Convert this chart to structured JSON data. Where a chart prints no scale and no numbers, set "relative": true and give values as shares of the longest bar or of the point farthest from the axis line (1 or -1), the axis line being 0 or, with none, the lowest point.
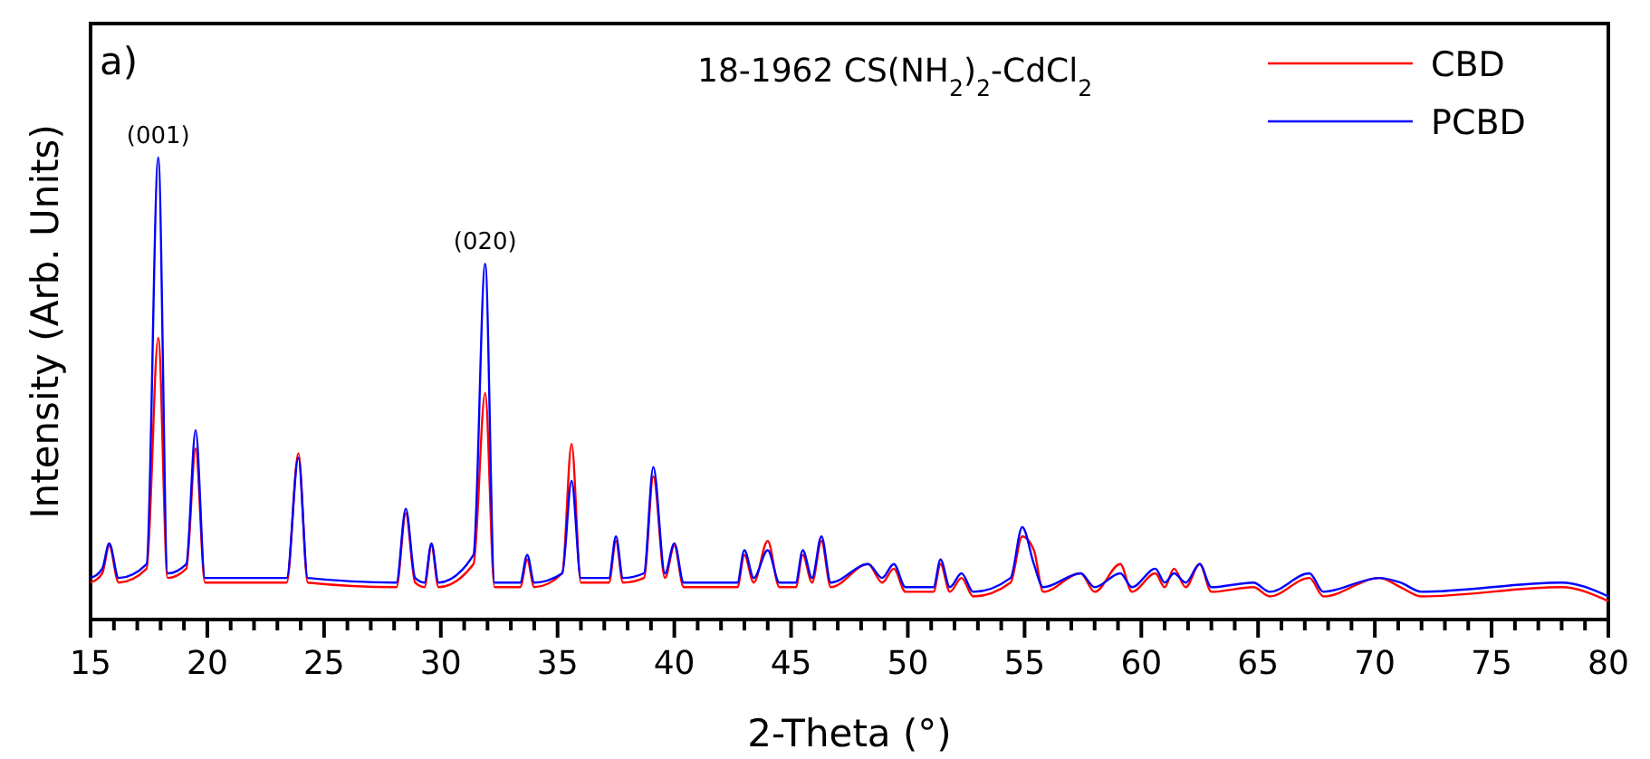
{
  "chart_data": {
    "type": "line",
    "relative": true,
    "xlabel": "2-Theta (°)",
    "ylabel": "Intensity (Arb. Units)",
    "legend": "top right",
    "tick_labels": "x",
    "line_style": "solid",
    "marker": "none",
    "annotations": [
      "a)",
      "18-1962 CS(NH$_{2}$)$_{2}$-CdCl$_{2}$",
      {
        "text": "(001)",
        "x": 17.9,
        "y": 1.0
      },
      {
        "text": "(020)",
        "x": 31.9,
        "y": 0.77
      }
    ],
    "xlim": [
      15,
      80
    ],
    "xticks": [
      15,
      {
        "value": 16,
        "label": null
      },
      {
        "value": 17,
        "label": null
      },
      {
        "value": 18,
        "label": null
      },
      {
        "value": 19,
        "label": null
      },
      20,
      {
        "value": 21,
        "label": null
      },
      {
        "value": 22,
        "label": null
      },
      {
        "value": 23,
        "label": null
      },
      {
        "value": 24,
        "label": null
      },
      25,
      {
        "value": 26,
        "label": null
      },
      {
        "value": 27,
        "label": null
      },
      {
        "value": 28,
        "label": null
      },
      {
        "value": 29,
        "label": null
      },
      30,
      {
        "value": 31,
        "label": null
      },
      {
        "value": 32,
        "label": null
      },
      {
        "value": 33,
        "label": null
      },
      {
        "value": 34,
        "label": null
      },
      35,
      {
        "value": 36,
        "label": null
      },
      {
        "value": 37,
        "label": null
      },
      {
        "value": 38,
        "label": null
      },
      {
        "value": 39,
        "label": null
      },
      40,
      {
        "value": 41,
        "label": null
      },
      {
        "value": 42,
        "label": null
      },
      {
        "value": 43,
        "label": null
      },
      {
        "value": 44,
        "label": null
      },
      45,
      {
        "value": 46,
        "label": null
      },
      {
        "value": 47,
        "label": null
      },
      {
        "value": 48,
        "label": null
      },
      {
        "value": 49,
        "label": null
      },
      50,
      {
        "value": 51,
        "label": null
      },
      {
        "value": 52,
        "label": null
      },
      {
        "value": 53,
        "label": null
      },
      {
        "value": 54,
        "label": null
      },
      55,
      {
        "value": 56,
        "label": null
      },
      {
        "value": 57,
        "label": null
      },
      {
        "value": 58,
        "label": null
      },
      {
        "value": 59,
        "label": null
      },
      60,
      {
        "value": 61,
        "label": null
      },
      {
        "value": 62,
        "label": null
      },
      {
        "value": 63,
        "label": null
      },
      {
        "value": 64,
        "label": null
      },
      65,
      {
        "value": 66,
        "label": null
      },
      {
        "value": 67,
        "label": null
      },
      {
        "value": 68,
        "label": null
      },
      {
        "value": 69,
        "label": null
      },
      70,
      {
        "value": 71,
        "label": null
      },
      {
        "value": 72,
        "label": null
      },
      {
        "value": 73,
        "label": null
      },
      {
        "value": 74,
        "label": null
      },
      75,
      {
        "value": 76,
        "label": null
      },
      {
        "value": 77,
        "label": null
      },
      {
        "value": 78,
        "label": null
      },
      {
        "value": 79,
        "label": null
      },
      80
    ],
    "x": [
      15,
      15.5,
      15.8,
      16.2,
      17.4,
      17.9,
      18.3,
      19.1,
      19.5,
      19.9,
      23.4,
      23.9,
      24.3,
      28.1,
      28.5,
      28.9,
      29.3,
      29.6,
      29.9,
      31.4,
      31.9,
      32.3,
      33.4,
      33.7,
      34.0,
      35.2,
      35.6,
      36.0,
      37.2,
      37.5,
      37.8,
      38.7,
      39.1,
      39.6,
      40.0,
      40.4,
      42.7,
      43.0,
      43.4,
      44.0,
      44.5,
      45.2,
      45.5,
      45.9,
      46.3,
      46.7,
      48.3,
      48.9,
      49.4,
      49.9,
      51.1,
      51.4,
      51.8,
      52.3,
      52.8,
      54.4,
      54.9,
      55.4,
      55.8,
      57.4,
      58.0,
      59.1,
      59.6,
      60.6,
      61.0,
      61.4,
      61.9,
      62.5,
      63.0,
      64.8,
      65.5,
      67.2,
      67.8,
      70.2,
      71.1,
      72,
      78,
      80
    ],
    "series": [
      {
        "name": "CBD",
        "color": "#ff0000",
        "values": [
          0.08,
          0.1,
          0.16,
          0.08,
          0.11,
          0.61,
          0.09,
          0.11,
          0.37,
          0.08,
          0.08,
          0.36,
          0.08,
          0.07,
          0.23,
          0.08,
          0.07,
          0.16,
          0.07,
          0.12,
          0.49,
          0.07,
          0.07,
          0.13,
          0.07,
          0.1,
          0.38,
          0.08,
          0.08,
          0.17,
          0.08,
          0.09,
          0.31,
          0.09,
          0.16,
          0.07,
          0.07,
          0.14,
          0.08,
          0.17,
          0.07,
          0.07,
          0.14,
          0.08,
          0.17,
          0.07,
          0.12,
          0.08,
          0.11,
          0.06,
          0.06,
          0.12,
          0.06,
          0.09,
          0.05,
          0.08,
          0.18,
          0.15,
          0.06,
          0.1,
          0.06,
          0.12,
          0.06,
          0.1,
          0.07,
          0.11,
          0.07,
          0.12,
          0.06,
          0.07,
          0.05,
          0.09,
          0.05,
          0.09,
          0.07,
          0.05,
          0.07,
          0.04
        ]
      },
      {
        "name": "PCBD",
        "color": "#0000ff",
        "values": [
          0.09,
          0.11,
          0.165,
          0.09,
          0.12,
          1.0,
          0.1,
          0.12,
          0.41,
          0.09,
          0.09,
          0.35,
          0.09,
          0.08,
          0.24,
          0.09,
          0.08,
          0.165,
          0.08,
          0.14,
          0.77,
          0.08,
          0.08,
          0.14,
          0.08,
          0.1,
          0.3,
          0.09,
          0.09,
          0.18,
          0.09,
          0.1,
          0.33,
          0.1,
          0.165,
          0.08,
          0.08,
          0.15,
          0.09,
          0.15,
          0.08,
          0.08,
          0.15,
          0.09,
          0.18,
          0.08,
          0.12,
          0.09,
          0.12,
          0.07,
          0.07,
          0.13,
          0.07,
          0.1,
          0.06,
          0.09,
          0.2,
          0.12,
          0.07,
          0.1,
          0.07,
          0.1,
          0.07,
          0.11,
          0.08,
          0.1,
          0.08,
          0.12,
          0.07,
          0.08,
          0.06,
          0.1,
          0.06,
          0.09,
          0.08,
          0.06,
          0.08,
          0.05
        ]
      }
    ]
  }
}
